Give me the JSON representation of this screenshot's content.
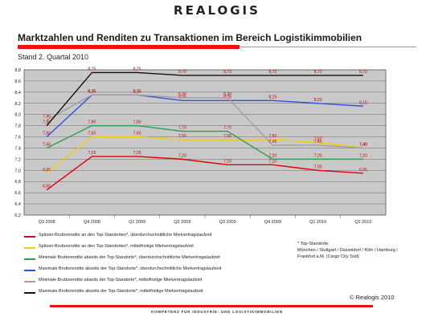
{
  "header": {
    "logo": "REALOGIS",
    "title": "Marktzahlen und Renditen zu Transaktionen im Bereich Logistikimmobilien",
    "subtitle": "Stand 2. Quartal 2010"
  },
  "colors": {
    "accent": "#e11111",
    "plot_background": "#c9c9c9"
  },
  "chart_data": {
    "type": "line",
    "categories": [
      "Q3 2008",
      "Q4 2008",
      "Q1 2009",
      "Q2 2009",
      "Q3 2009",
      "Q4 2009",
      "Q1 2010",
      "Q2 2010"
    ],
    "ylim": [
      6.2,
      8.8
    ],
    "yticks": [
      "6,2",
      "6,4",
      "6,6",
      "6,8",
      "7,0",
      "7,2",
      "7,4",
      "7,6",
      "7,8",
      "8,0",
      "8,2",
      "8,4",
      "8,6",
      "8,8"
    ],
    "grid": true,
    "legend_position": "bottom",
    "series": [
      {
        "name": "Spitzen-Bruttorendite an den Top-Standorten*, überdurchschnittliche Mietvertragslaufzeit",
        "color": "#e00000",
        "values": [
          6.65,
          7.25,
          7.25,
          7.2,
          7.1,
          7.1,
          7.0,
          6.95
        ],
        "labels": [
          "6,65",
          "7,25",
          "7,25",
          "7,20",
          "7,10",
          "7,10",
          "7,00",
          "6,95"
        ]
      },
      {
        "name": "Spitzen-Bruttorendite an den Top-Standorten*, mittelfristige Mietvertragslaufzeit",
        "color": "#f0d000",
        "values": [
          6.95,
          7.6,
          7.6,
          7.55,
          7.55,
          7.55,
          7.5,
          7.4
        ],
        "labels": [
          "6,95",
          "7,60",
          "7,60",
          "7,55",
          "7,55",
          "7,55",
          "7,50",
          "7,40"
        ]
      },
      {
        "name": "Minimale Bruttorendite abseits der Top-Standorte*, überdurchschnittliche Mietvertragslaufzeit",
        "color": "#30a050",
        "values": [
          7.4,
          7.8,
          7.8,
          7.7,
          7.7,
          7.2,
          7.2,
          7.2
        ],
        "labels": [
          "7,40",
          "7,80",
          "7,80",
          "7,70",
          "7,70",
          "7,20",
          "7,20",
          "7,20"
        ]
      },
      {
        "name": "Maximale Bruttorendite abseits der Top-Standorte*, überdurchschnittliche Mietvertragslaufzeit",
        "color": "#3050e0",
        "values": [
          7.6,
          8.35,
          8.35,
          8.25,
          8.25,
          8.25,
          8.2,
          8.15
        ],
        "labels": [
          "7,60",
          "8,35",
          "8,35",
          "8,25",
          "8,25",
          "8,25",
          "8,20",
          "8,15"
        ]
      },
      {
        "name": "Minimale Bruttorendite abseits der Top-Standorte*, mittelfristige Mietvertragslaufzeit",
        "color": "#a0a0a0",
        "values": [
          7.9,
          8.35,
          8.35,
          8.3,
          8.3,
          7.45,
          7.45,
          7.4
        ],
        "labels": [
          "7,90",
          "8,35",
          "8,35",
          "8,30",
          "8,30",
          "7,45",
          "7,45",
          "7,40"
        ]
      },
      {
        "name": "Maximale Bruttorendite abseits der Top-Standorte*, mittelfristige Mietvertragslaufzeit",
        "color": "#111111",
        "values": [
          7.8,
          8.75,
          8.75,
          8.7,
          8.7,
          8.7,
          8.7,
          8.7
        ],
        "labels": [
          "7,80",
          "8,75",
          "8,75",
          "8,70",
          "8,70",
          "8,70",
          "8,70",
          "8,70"
        ]
      }
    ]
  },
  "note": "* Top-Standorte:\nMünchen / Stuttgart / Düsseldorf / Köln / Hamburg /\nFrankfurt a.M. (Cargo City Süd)",
  "copyright": "© Realogis 2010",
  "footer": "KOMPETENZ FÜR INDUSTRIE- UND LOGISTIKIMMOBILIEN"
}
